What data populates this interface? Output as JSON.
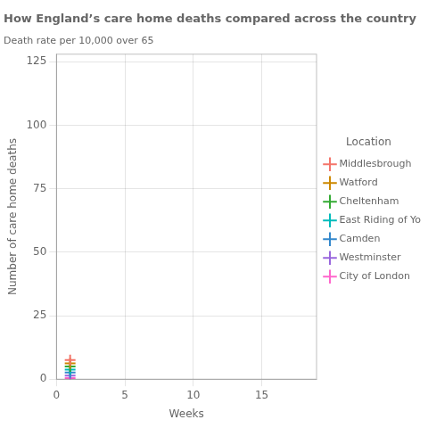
{
  "chart_data": {
    "type": "scatter",
    "title": "How England’s care home deaths compared across the country",
    "subtitle": "Death rate per 10,000 over 65",
    "xlabel": "Weeks",
    "ylabel": "Number of care home deaths",
    "xlim": [
      0,
      19
    ],
    "xticks": [
      0,
      5,
      10,
      15
    ],
    "ylim": [
      0,
      128
    ],
    "yticks": [
      0,
      25,
      50,
      75,
      100,
      125
    ],
    "grid": true,
    "legend": "right",
    "legend_title": "Location",
    "marker": "plus",
    "series": [
      {
        "name": "Middlesbrough",
        "color": "#f4746a",
        "x": [
          1
        ],
        "values": [
          7.5
        ]
      },
      {
        "name": "Watford",
        "color": "#cc8800",
        "x": [
          1
        ],
        "values": [
          6.2
        ]
      },
      {
        "name": "Cheltenham",
        "color": "#33aa33",
        "x": [
          1
        ],
        "values": [
          5.0
        ]
      },
      {
        "name": "East Riding of Yorkshire",
        "color": "#00bbbb",
        "x": [
          1
        ],
        "values": [
          3.8
        ]
      },
      {
        "name": "Camden",
        "color": "#3388cc",
        "x": [
          1
        ],
        "values": [
          2.6
        ]
      },
      {
        "name": "Westminster",
        "color": "#9966dd",
        "x": [
          1
        ],
        "values": [
          1.4
        ]
      },
      {
        "name": "City of London",
        "color": "#ff66cc",
        "x": [
          1
        ],
        "values": [
          0.4
        ]
      }
    ]
  }
}
